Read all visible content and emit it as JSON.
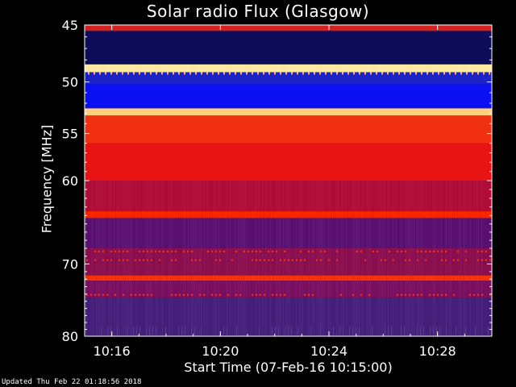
{
  "chart_data": {
    "type": "heatmap",
    "title": "Solar radio Flux (Glasgow)",
    "xlabel": "Start Time (07-Feb-16 10:15:00)",
    "ylabel": "Frequency [MHz]",
    "x_ticks": [
      "10:16",
      "10:20",
      "10:24",
      "10:28"
    ],
    "x_tick_minutes": [
      1,
      5,
      9,
      13
    ],
    "xlim_minutes": [
      0,
      15
    ],
    "y_ticks": [
      45,
      50,
      55,
      60,
      70,
      80
    ],
    "ylim_mhz": [
      45,
      80
    ],
    "y_scale": "log",
    "bands": [
      {
        "from": 45.0,
        "to": 45.5,
        "color": "#d42020"
      },
      {
        "from": 45.5,
        "to": 48.4,
        "color": "#0d0d5a"
      },
      {
        "from": 48.4,
        "to": 49.1,
        "color": "#ffe9a0"
      },
      {
        "from": 49.1,
        "to": 50.2,
        "color": "#1a22c8"
      },
      {
        "from": 50.2,
        "to": 52.5,
        "color": "#0a10f0"
      },
      {
        "from": 52.5,
        "to": 53.2,
        "color": "#ffcf80"
      },
      {
        "from": 53.2,
        "to": 56.0,
        "color": "#f03010"
      },
      {
        "from": 56.0,
        "to": 60.0,
        "color": "#e81414"
      },
      {
        "from": 60.0,
        "to": 63.5,
        "color": "#b0103a"
      },
      {
        "from": 63.5,
        "to": 64.3,
        "color": "#ff2a00"
      },
      {
        "from": 64.3,
        "to": 68.0,
        "color": "#5a1070"
      },
      {
        "from": 68.0,
        "to": 71.5,
        "color": "#8a1050"
      },
      {
        "from": 71.5,
        "to": 72.2,
        "color": "#ff3a10"
      },
      {
        "from": 72.2,
        "to": 74.5,
        "color": "#7a1060"
      },
      {
        "from": 74.5,
        "to": 80.0,
        "color": "#45207a"
      }
    ],
    "colors": {
      "background": "#000000",
      "text": "#ffffff",
      "axis": "#ffffff"
    }
  },
  "footer": "Updated Thu Feb 22 01:18:56 2018"
}
